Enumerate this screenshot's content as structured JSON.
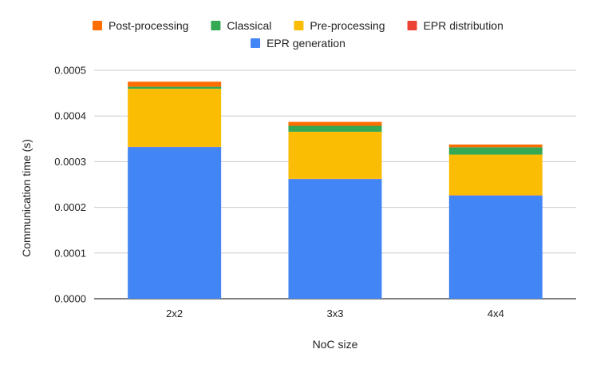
{
  "chart_data": {
    "type": "bar",
    "stacked": true,
    "categories": [
      "2x2",
      "3x3",
      "4x4"
    ],
    "xlabel": "NoC size",
    "ylabel": "Communication time (s)",
    "ylim": [
      0,
      0.0005
    ],
    "yticks": [
      "0.0000",
      "0.0001",
      "0.0002",
      "0.0003",
      "0.0004",
      "0.0005"
    ],
    "grid": true,
    "legend_position": "top",
    "series": [
      {
        "name": "EPR generation",
        "color": "#4285F4",
        "values": [
          0.000332,
          0.000262,
          0.000226
        ]
      },
      {
        "name": "EPR distribution",
        "color": "#EA4335",
        "values": [
          5e-07,
          5e-07,
          5e-07
        ]
      },
      {
        "name": "Pre-processing",
        "color": "#FBBC04",
        "values": [
          0.000127,
          0.000103,
          8.9e-05
        ]
      },
      {
        "name": "Classical",
        "color": "#34A853",
        "values": [
          4.5e-06,
          1.3e-05,
          1.6e-05
        ]
      },
      {
        "name": "Post-processing",
        "color": "#FF6D01",
        "values": [
          1.1e-05,
          8.5e-06,
          6e-06
        ]
      }
    ],
    "legend_rows": [
      [
        "Post-processing",
        "Classical",
        "Pre-processing",
        "EPR distribution"
      ],
      [
        "EPR generation"
      ]
    ]
  }
}
